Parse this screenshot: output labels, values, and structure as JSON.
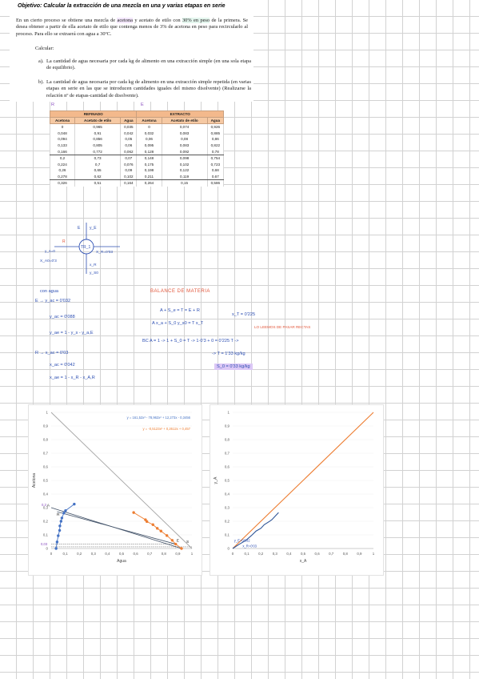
{
  "document": {
    "title": "Objetivo: Calcular la extracción de una mezcla en una y varias etapas en serie",
    "para1": [
      {
        "t": "En un cierto proceso se obtiene una mezcla de ",
        "h": ""
      },
      {
        "t": "acetona",
        "h": "hlp"
      },
      {
        "t": " y acetato de etilo con ",
        "h": ""
      },
      {
        "t": "30% en peso",
        "h": "hl"
      },
      {
        "t": " de la primera. Se desea obtener a partir de ella acetato de etilo que contenga menos de 3% de acetona en peso para recircularlo al proceso. Para ello se extraerá con agua a 30ºC.",
        "h": ""
      }
    ],
    "calcular": "Calcular:",
    "item_a_marker": "a).",
    "item_a": "La cantidad de agua necesaria por cada kg de alimento en una extracción simple (en una sola etapa de equilibrio).",
    "item_b_marker": "b).",
    "item_b": "La cantidad de agua necesaria por cada kg de alimento en una extracción simple repetida (en varias etapas en serie en las que se introducen cantidades iguales del mismo disolvente) (Realizarse la relación nº de etapas-cantidad de disolvente)."
  },
  "table": {
    "group_refinado": "REFINADO",
    "group_extracto": "EXTRACTO",
    "headers": [
      "Acetona",
      "Acetato de etilo",
      "Agua",
      "Acetona",
      "Acetato de etilo",
      "Agua"
    ],
    "rows": [
      [
        "0",
        "0,965",
        "0,035",
        "0",
        "0,074",
        "0,926"
      ],
      [
        "0,048",
        "0,91",
        "0,042",
        "0,032",
        "0,083",
        "0,885"
      ],
      [
        "0,094",
        "0,856",
        "0,05",
        "0,06",
        "0,08",
        "0,86"
      ],
      [
        "0,133",
        "0,805",
        "0,06",
        "0,095",
        "0,083",
        "0,822"
      ],
      [
        "0,166",
        "0,772",
        "0,062",
        "0,128",
        "0,092",
        "0,78"
      ],
      [
        "0,2",
        "0,73",
        "0,07",
        "0,148",
        "0,098",
        "0,754"
      ],
      [
        "0,224",
        "0,7",
        "0,076",
        "0,175",
        "0,102",
        "0,723"
      ],
      [
        "0,26",
        "0,65",
        "0,09",
        "0,198",
        "0,122",
        "0,68"
      ],
      [
        "0,278",
        "0,62",
        "0,102",
        "0,211",
        "0,119",
        "0,67"
      ],
      [
        "0,326",
        "0,51",
        "0,164",
        "0,264",
        "0,15",
        "0,586"
      ]
    ]
  },
  "notes": {
    "marks_r": "R",
    "marks_e": "E",
    "stream_top": "E",
    "stream_top_y": "y_E",
    "stream_left": "R",
    "stream_left2": "y_s=0",
    "stream_left3": "X_A0=0'3",
    "stage": "TR_1",
    "stream_right": "X_R=0'03",
    "stream_bottom": "x_R",
    "stream_bottom2": "y_S0",
    "con_agua": "con agua",
    "e_line": "E → y_ac = 0'032",
    "y_ac": "y_ac = 0'088",
    "y_ae": "y_ae = 1 - y_s - y_a,E",
    "r_line": "R → x_ac = 0'03",
    "x_ac": "x_ac = 0'042",
    "x_ae": "x_ae = 1 - x_R - x_A,R",
    "balance_title": "BALANCE DE MATERIA",
    "bal1": "A + S_e = T = E + R",
    "bal2": "A x_a + S_0 y_s0 = T x_T",
    "bal_side": "x_T = 0'225",
    "bal_side2": "LO LEEMOS DE PASAR RECTAS",
    "bc_line": "BC   A = 1    ->   1 + S_0 = T  ->  1·0'3 + 0 = 0'225 T  ->",
    "res1": "-> T = 1'33 kg/kg",
    "res2": "S_0 = 0'33 kg/kg"
  },
  "chart_left": {
    "type": "scatter",
    "equation1": "y = 161,52x³ - 78,962x² + 12,273x - 0,3456",
    "equation2": "y = -0,5123x² + 0,2612x + 0,457",
    "xlabel": "Agua",
    "ylabel": "Acetona",
    "xticks": [
      "0",
      "0,1",
      "0,2",
      "0,3",
      "0,4",
      "0,5",
      "0,6",
      "0,7",
      "0,8",
      "0,9",
      "1"
    ],
    "yticks": [
      "0",
      "0,1",
      "0,2",
      "0,3",
      "0,4",
      "0,5",
      "0,6",
      "0,7",
      "0,8",
      "0,9",
      "1"
    ],
    "xlim": [
      0,
      1
    ],
    "ylim": [
      0,
      1
    ],
    "colors": {
      "refinado": "#4472c4",
      "extracto": "#ed7d31",
      "tie": "#44546a",
      "diag": "#a5a5a5"
    },
    "point_labels": [
      "A",
      "E",
      "R",
      "S"
    ],
    "side_labels": [
      "0,3",
      "0,03"
    ],
    "refinado": [
      [
        0.035,
        0
      ],
      [
        0.042,
        0.048
      ],
      [
        0.05,
        0.094
      ],
      [
        0.06,
        0.133
      ],
      [
        0.062,
        0.166
      ],
      [
        0.07,
        0.2
      ],
      [
        0.076,
        0.224
      ],
      [
        0.09,
        0.26
      ],
      [
        0.102,
        0.278
      ],
      [
        0.164,
        0.326
      ]
    ],
    "extracto": [
      [
        0.926,
        0
      ],
      [
        0.885,
        0.032
      ],
      [
        0.86,
        0.06
      ],
      [
        0.822,
        0.095
      ],
      [
        0.78,
        0.128
      ],
      [
        0.754,
        0.148
      ],
      [
        0.723,
        0.175
      ],
      [
        0.68,
        0.198
      ],
      [
        0.67,
        0.211
      ],
      [
        0.586,
        0.264
      ]
    ]
  },
  "chart_right": {
    "type": "line",
    "xlabel": "x_A",
    "ylabel": "y_A",
    "xticks": [
      "0",
      "0,1",
      "0,2",
      "0,3",
      "0,4",
      "0,5",
      "0,6",
      "0,7",
      "0,8",
      "0,9",
      "1"
    ],
    "yticks": [
      "0",
      "0,1",
      "0,2",
      "0,3",
      "0,4",
      "0,5",
      "0,6",
      "0,7",
      "0,8",
      "0,9",
      "1"
    ],
    "xlim": [
      0,
      1
    ],
    "ylim": [
      0,
      1
    ],
    "annot1": "y_E=0'032",
    "annot2": "x_R=0'03",
    "colors": {
      "equilibrium": "#2f5597",
      "diagonal": "#ed7d31"
    },
    "equilibrium": [
      [
        0,
        0
      ],
      [
        0.048,
        0.032
      ],
      [
        0.094,
        0.06
      ],
      [
        0.133,
        0.095
      ],
      [
        0.166,
        0.128
      ],
      [
        0.2,
        0.148
      ],
      [
        0.224,
        0.175
      ],
      [
        0.26,
        0.198
      ],
      [
        0.278,
        0.211
      ],
      [
        0.326,
        0.264
      ]
    ]
  }
}
